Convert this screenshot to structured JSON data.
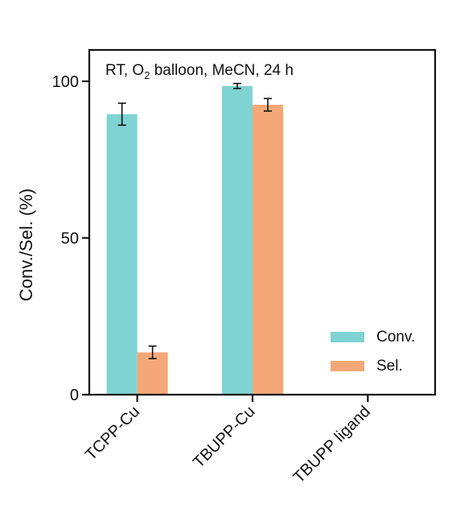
{
  "chart_data": {
    "type": "bar",
    "categories": [
      "TCPP-Cu",
      "TBUPP-Cu",
      "TBUPP ligand"
    ],
    "series": [
      {
        "name": "Conv.",
        "values": [
          89.5,
          98.5,
          0
        ],
        "errors": [
          3.5,
          0.8,
          0
        ],
        "color": "#7fd3d2"
      },
      {
        "name": "Sel.",
        "values": [
          13.5,
          92.5,
          0
        ],
        "errors": [
          2.0,
          2.0,
          0
        ],
        "color": "#f4a877"
      }
    ],
    "annotation": {
      "text": "RT, O",
      "sub": "2",
      "tail": " balloon, MeCN, 24 h"
    },
    "xlabel": "",
    "ylabel": "Conv./Sel. (%)",
    "ylim": [
      0,
      110
    ],
    "yticks": [
      0,
      50,
      100
    ],
    "grid": false,
    "legend": "bottom-right"
  }
}
